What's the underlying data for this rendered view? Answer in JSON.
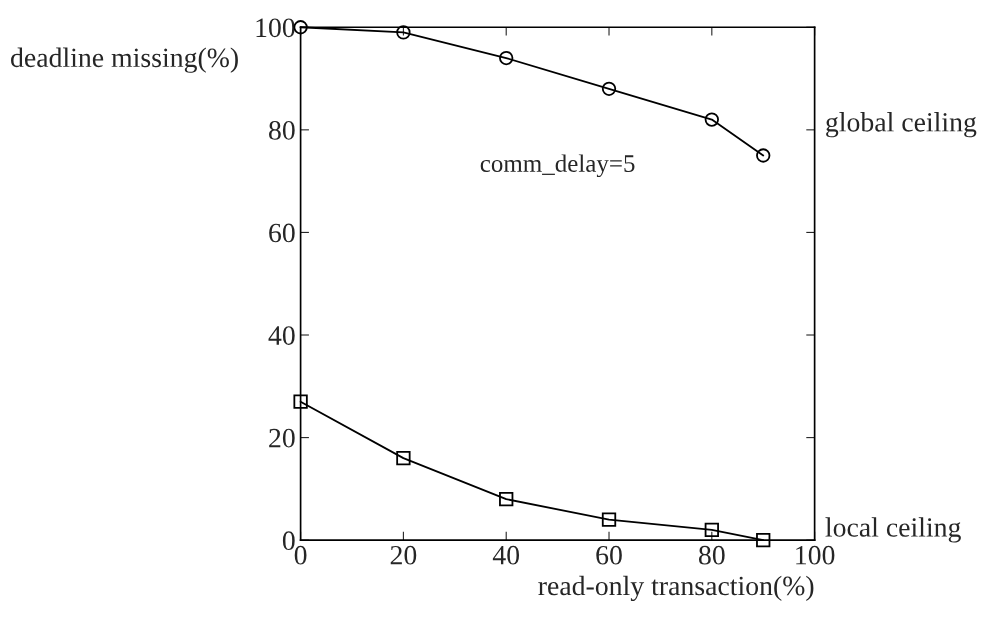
{
  "chart_data": {
    "type": "line",
    "xlabel": "read-only transaction(%)",
    "ylabel": "deadline missing(%)",
    "x": [
      0,
      20,
      40,
      60,
      80,
      90
    ],
    "series": [
      {
        "name": "global ceiling",
        "color": "#000000",
        "marker": "circle",
        "values": [
          100,
          99,
          94,
          88,
          82,
          75
        ]
      },
      {
        "name": "local ceiling",
        "color": "#000000",
        "marker": "square",
        "values": [
          27,
          16,
          8,
          4,
          2,
          0
        ]
      }
    ],
    "xlim": [
      0,
      100
    ],
    "ylim": [
      0,
      100
    ],
    "xticks": [
      0,
      20,
      40,
      60,
      80,
      100
    ],
    "yticks": [
      0,
      20,
      40,
      60,
      80,
      100
    ],
    "grid": false,
    "line_style": "solid",
    "annotations": [
      "comm_delay=5"
    ]
  }
}
